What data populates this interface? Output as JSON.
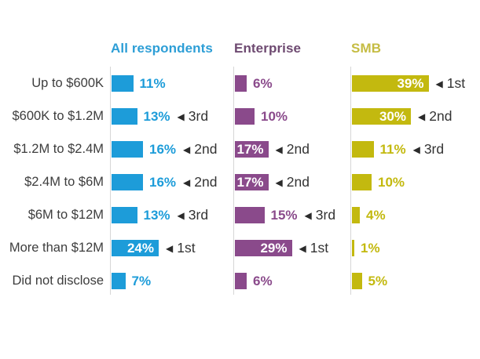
{
  "chart_data": {
    "type": "bar",
    "orientation": "horizontal",
    "unit": "%",
    "title": "",
    "grid": false,
    "legend_position": "column-headers",
    "xlim": [
      0,
      40
    ],
    "categories": [
      "Up to $600K",
      "$600K to $1.2M",
      "$1.2M to $2.4M",
      "$2.4M to $6M",
      "$6M to $12M",
      "More than $12M",
      "Did not disclose"
    ],
    "rank_marker": "◀",
    "series": [
      {
        "name": "All respondents",
        "bar_color": "#1d9cd9",
        "header_color": "#2d9ed6",
        "values": [
          11,
          13,
          16,
          16,
          13,
          24,
          7
        ],
        "ranks": [
          null,
          "3rd",
          "2nd",
          "2nd",
          "3rd",
          "1st",
          null
        ],
        "label_inside": [
          false,
          false,
          false,
          false,
          false,
          true,
          false
        ]
      },
      {
        "name": "Enterprise",
        "bar_color": "#8a4a8b",
        "header_color": "#6e4a71",
        "values": [
          6,
          10,
          17,
          17,
          15,
          29,
          6
        ],
        "ranks": [
          null,
          null,
          "2nd",
          "2nd",
          "3rd",
          "1st",
          null
        ],
        "label_inside": [
          false,
          false,
          true,
          true,
          false,
          true,
          false
        ]
      },
      {
        "name": "SMB",
        "bar_color": "#c3b90f",
        "header_color": "#c5bc43",
        "values": [
          39,
          30,
          11,
          10,
          4,
          1,
          5
        ],
        "ranks": [
          "1st",
          "2nd",
          "3rd",
          null,
          null,
          null,
          null
        ],
        "label_inside": [
          true,
          true,
          false,
          false,
          false,
          false,
          false
        ]
      }
    ],
    "colors": {
      "background": "#ffffff",
      "axis_line": "#d6d6d6",
      "category_label_text": "#3d3d3d",
      "rank_text": "#333333",
      "inside_value_text": "#ffffff"
    }
  }
}
